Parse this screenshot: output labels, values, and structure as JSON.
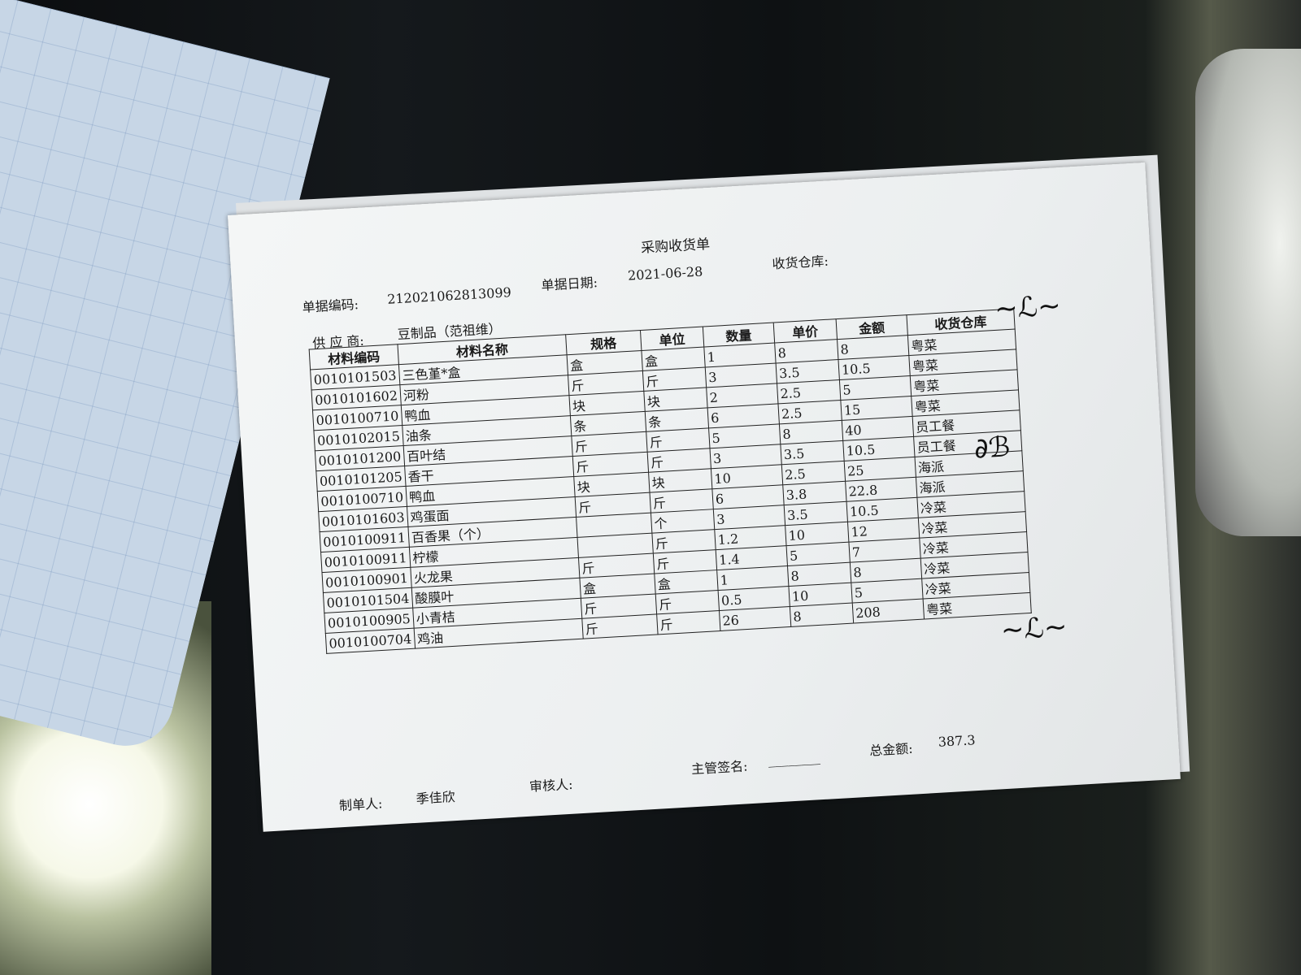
{
  "document": {
    "title": "采购收货单",
    "doc_no_label": "单据编码:",
    "doc_no": "212021062813099",
    "doc_date_label": "单据日期:",
    "doc_date": "2021-06-28",
    "warehouse_label": "收货仓库:",
    "supplier_label": "供 应 商:",
    "supplier": "豆制品（范祖维）",
    "columns": [
      "材料编码",
      "材料名称",
      "规格",
      "单位",
      "数量",
      "单价",
      "金额",
      "收货仓库"
    ],
    "rows": [
      [
        "0010101503",
        "三色堇*盒",
        "盒",
        "盒",
        "1",
        "8",
        "8",
        "粤菜"
      ],
      [
        "0010101602",
        "河粉",
        "斤",
        "斤",
        "3",
        "3.5",
        "10.5",
        "粤菜"
      ],
      [
        "0010100710",
        "鸭血",
        "块",
        "块",
        "2",
        "2.5",
        "5",
        "粤菜"
      ],
      [
        "0010102015",
        "油条",
        "条",
        "条",
        "6",
        "2.5",
        "15",
        "粤菜"
      ],
      [
        "0010101200",
        "百叶结",
        "斤",
        "斤",
        "5",
        "8",
        "40",
        "员工餐"
      ],
      [
        "0010101205",
        "香干",
        "斤",
        "斤",
        "3",
        "3.5",
        "10.5",
        "员工餐"
      ],
      [
        "0010100710",
        "鸭血",
        "块",
        "块",
        "10",
        "2.5",
        "25",
        "海派"
      ],
      [
        "0010101603",
        "鸡蛋面",
        "斤",
        "斤",
        "6",
        "3.8",
        "22.8",
        "海派"
      ],
      [
        "0010100911",
        "百香果（个）",
        "",
        "个",
        "3",
        "3.5",
        "10.5",
        "冷菜"
      ],
      [
        "0010100911",
        "柠檬",
        "",
        "斤",
        "1.2",
        "10",
        "12",
        "冷菜"
      ],
      [
        "0010100901",
        "火龙果",
        "斤",
        "斤",
        "1.4",
        "5",
        "7",
        "冷菜"
      ],
      [
        "0010101504",
        "酸膜叶",
        "盒",
        "盒",
        "1",
        "8",
        "8",
        "冷菜"
      ],
      [
        "0010100905",
        "小青桔",
        "斤",
        "斤",
        "0.5",
        "10",
        "5",
        "冷菜"
      ],
      [
        "0010100704",
        "鸡油",
        "斤",
        "斤",
        "26",
        "8",
        "208",
        "粤菜"
      ]
    ],
    "maker_label": "制单人:",
    "maker": "季佳欣",
    "reviewer_label": "审核人:",
    "supervisor_label": "主管签名:",
    "supervisor_blank": "________",
    "total_label": "总金额:",
    "total": "387.3"
  }
}
